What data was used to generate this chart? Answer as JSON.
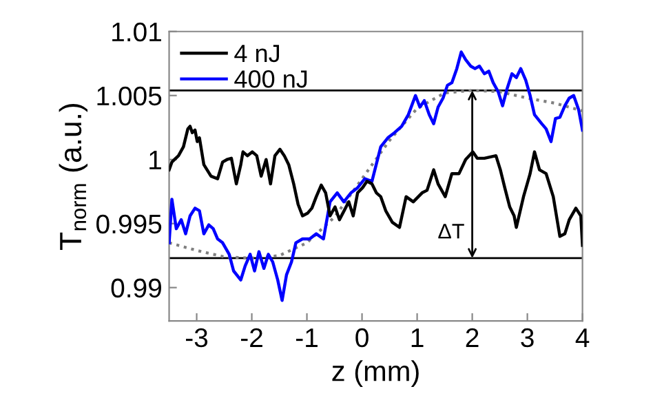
{
  "chart_data": {
    "type": "line",
    "xlabel": "z (mm)",
    "ylabel": "T$_{norm}$ (a.u.)",
    "xlim": [
      -3.5,
      4
    ],
    "ylim": [
      0.9874,
      1.01
    ],
    "xticks": [
      {
        "value": -3,
        "label": "-3"
      },
      {
        "value": -2,
        "label": "-2"
      },
      {
        "value": -1,
        "label": "-1"
      },
      0,
      1,
      2,
      3,
      4
    ],
    "yticks": [
      0.99,
      0.995,
      1,
      1.005,
      1.01
    ],
    "grid": false,
    "legend": "top left",
    "line_style": "solid",
    "marker": "none",
    "series": [
      {
        "name": "4 nJ",
        "color": "#000000",
        "x": [
          -3.5,
          -3.45,
          -3.33,
          -3.24,
          -3.16,
          -3.12,
          -3.08,
          -3.03,
          -2.99,
          -2.95,
          -2.87,
          -2.74,
          -2.62,
          -2.53,
          -2.45,
          -2.37,
          -2.28,
          -2.2,
          -2.16,
          -2.08,
          -1.99,
          -1.91,
          -1.83,
          -1.74,
          -1.66,
          -1.58,
          -1.49,
          -1.41,
          -1.33,
          -1.24,
          -1.16,
          -1.08,
          -0.99,
          -0.91,
          -0.83,
          -0.74,
          -0.66,
          -0.58,
          -0.49,
          -0.41,
          -0.24,
          -0.16,
          -0.08,
          0.01,
          0.09,
          0.18,
          0.26,
          0.34,
          0.43,
          0.55,
          0.68,
          0.8,
          0.93,
          1.09,
          1.18,
          1.3,
          1.38,
          1.51,
          1.63,
          1.76,
          1.88,
          2.01,
          2.09,
          2.22,
          2.43,
          2.51,
          2.59,
          2.68,
          2.76,
          2.8,
          2.93,
          3.05,
          3.13,
          3.22,
          3.34,
          3.47,
          3.59,
          3.68,
          3.76,
          3.88,
          3.97,
          4.0
        ],
        "values": [
          0.9992,
          0.9998,
          1.0003,
          1.001,
          1.0024,
          1.0026,
          1.0021,
          1.0023,
          1.0014,
          1.0017,
          0.9996,
          0.9987,
          0.9985,
          0.9998,
          1.0,
          1.0001,
          0.9981,
          0.9996,
          1.0006,
          1.0003,
          1.0006,
          1.0003,
          0.9987,
          1.0,
          0.9981,
          1.0003,
          1.0008,
          1.0003,
          0.9996,
          0.9981,
          0.9965,
          0.9956,
          0.9958,
          0.9962,
          0.9971,
          0.998,
          0.9974,
          0.9956,
          0.9963,
          0.9953,
          0.9967,
          0.9956,
          0.9974,
          0.9978,
          0.9983,
          0.9981,
          0.9974,
          0.9971,
          0.996,
          0.9951,
          0.9947,
          0.9971,
          0.9967,
          0.9974,
          0.9976,
          0.9992,
          0.9981,
          0.9971,
          0.9989,
          0.9989,
          1.0,
          1.0006,
          1.0001,
          1.0001,
          1.0003,
          0.9992,
          0.9978,
          0.9963,
          0.9956,
          0.9947,
          0.9971,
          0.9989,
          1.0006,
          0.9992,
          0.9989,
          0.9971,
          0.994,
          0.9942,
          0.9953,
          0.9962,
          0.9956,
          0.9933
        ]
      },
      {
        "name": "400 nJ",
        "color": "#0000ff",
        "x": [
          -3.5,
          -3.45,
          -3.37,
          -3.28,
          -3.2,
          -3.12,
          -3.03,
          -2.95,
          -2.87,
          -2.78,
          -2.7,
          -2.62,
          -2.53,
          -2.41,
          -2.33,
          -2.2,
          -2.12,
          -2.03,
          -1.95,
          -1.87,
          -1.78,
          -1.7,
          -1.62,
          -1.53,
          -1.45,
          -1.37,
          -1.28,
          -1.2,
          -1.08,
          -0.95,
          -0.83,
          -0.7,
          -0.58,
          -0.45,
          -0.33,
          -0.2,
          -0.08,
          0.05,
          0.18,
          0.34,
          0.47,
          0.59,
          0.72,
          0.84,
          0.97,
          1.05,
          1.13,
          1.22,
          1.3,
          1.38,
          1.47,
          1.55,
          1.63,
          1.72,
          1.8,
          1.88,
          1.97,
          2.05,
          2.13,
          2.22,
          2.3,
          2.38,
          2.47,
          2.55,
          2.63,
          2.72,
          2.8,
          2.88,
          2.97,
          3.05,
          3.13,
          3.26,
          3.34,
          3.43,
          3.51,
          3.59,
          3.68,
          3.76,
          3.84,
          3.93,
          4.0
        ],
        "values": [
          0.9935,
          0.9969,
          0.9946,
          0.9953,
          0.9942,
          0.9956,
          0.9962,
          0.996,
          0.9942,
          0.9949,
          0.9946,
          0.9938,
          0.9935,
          0.9926,
          0.9913,
          0.9906,
          0.9917,
          0.9926,
          0.9913,
          0.9928,
          0.9915,
          0.9926,
          0.992,
          0.9906,
          0.989,
          0.991,
          0.992,
          0.9935,
          0.9938,
          0.9938,
          0.9942,
          0.9938,
          0.9967,
          0.9974,
          0.9967,
          0.9974,
          0.9978,
          0.9985,
          0.9983,
          1.001,
          1.0017,
          1.0021,
          1.0026,
          1.0035,
          1.005,
          1.0041,
          1.0046,
          1.0035,
          1.0028,
          1.0041,
          1.0048,
          1.0058,
          1.006,
          1.0071,
          1.0084,
          1.0078,
          1.0073,
          1.0071,
          1.0073,
          1.0067,
          1.0069,
          1.006,
          1.0053,
          1.0042,
          1.0055,
          1.0067,
          1.0064,
          1.0071,
          1.0062,
          1.005,
          1.0035,
          1.0028,
          1.0024,
          1.0014,
          1.0032,
          1.0033,
          1.0042,
          1.0048,
          1.005,
          1.0039,
          1.0023
        ]
      },
      {
        "color": "#808080",
        "line_style": "dotted",
        "x": [
          -3.5,
          -3,
          -2.5,
          -2,
          -1.5,
          -1,
          -0.5,
          0,
          0.5,
          1,
          1.5,
          2,
          2.5,
          3,
          3.5,
          4
        ],
        "values": [
          0.9935,
          0.9929,
          0.9924,
          0.9923,
          0.9925,
          0.9935,
          0.9955,
          0.9985,
          1.0015,
          1.004,
          1.0052,
          1.0054,
          1.0053,
          1.0048,
          1.0044,
          1.0038
        ]
      }
    ],
    "ref_lines": [
      {
        "axis": "y",
        "value": 1.0054,
        "color": "#000000"
      },
      {
        "axis": "y",
        "value": 0.9923,
        "color": "#000000"
      }
    ],
    "annotations": [
      {
        "text": "ΔT",
        "x": 2,
        "y": 1.0054
      }
    ]
  }
}
